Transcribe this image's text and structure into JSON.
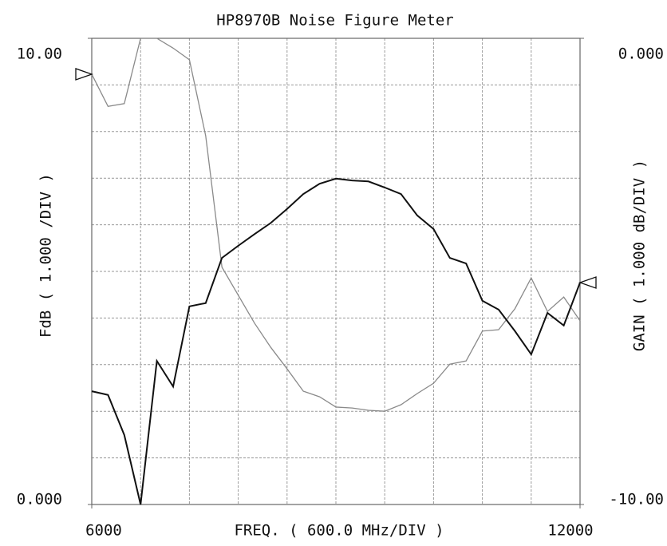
{
  "chart_data": {
    "type": "line",
    "title": "HP8970B Noise Figure Meter",
    "x_label": "FREQ. ( 600.0 MHz/DIV )",
    "y_label": "FdB ( 1.000 /DIV )",
    "y2_label": "GAIN ( 1.000 dB/DIV )",
    "x": [
      6000,
      6200,
      6400,
      6600,
      6800,
      7000,
      7200,
      7400,
      7600,
      7800,
      8000,
      8200,
      8400,
      8600,
      8800,
      9000,
      9200,
      9400,
      9600,
      9800,
      10000,
      10200,
      10400,
      10600,
      10800,
      11000,
      11200,
      11400,
      11600,
      11800,
      12000
    ],
    "series": [
      {
        "color": "#8a8a8a",
        "axis": "y",
        "values": [
          9.23,
          8.54,
          8.6,
          10.0,
          10.0,
          9.79,
          9.54,
          7.91,
          5.09,
          4.49,
          3.89,
          3.37,
          2.91,
          2.43,
          2.31,
          2.09,
          2.07,
          2.02,
          2.0,
          2.14,
          2.38,
          2.6,
          3.01,
          3.08,
          3.72,
          3.75,
          4.2,
          4.86,
          4.14,
          4.45,
          3.94
        ]
      },
      {
        "color": "#111111",
        "axis": "y2",
        "values": [
          -7.57,
          -7.65,
          -8.51,
          -10.0,
          -6.92,
          -7.47,
          -5.75,
          -5.68,
          -4.71,
          -4.45,
          -4.2,
          -3.96,
          -3.66,
          -3.34,
          -3.12,
          -3.01,
          -3.05,
          -3.07,
          -3.2,
          -3.34,
          -3.8,
          -4.09,
          -4.71,
          -4.83,
          -5.63,
          -5.82,
          -6.28,
          -6.78,
          -5.89,
          -6.16,
          -5.24
        ]
      }
    ],
    "xlim": [
      6000,
      12000
    ],
    "xticks": [
      6000,
      12000
    ],
    "ylim": [
      0,
      10
    ],
    "yticks": [
      {
        "value": 0,
        "label": "0.000"
      },
      {
        "value": 10,
        "label": "10.00"
      }
    ],
    "y2lim": [
      -10,
      0
    ],
    "y2ticks": [
      {
        "value": -10,
        "label": "-10.00"
      },
      {
        "value": 0,
        "label": "0.000"
      }
    ],
    "grid": {
      "x_step": 600,
      "y_step": 1
    }
  }
}
